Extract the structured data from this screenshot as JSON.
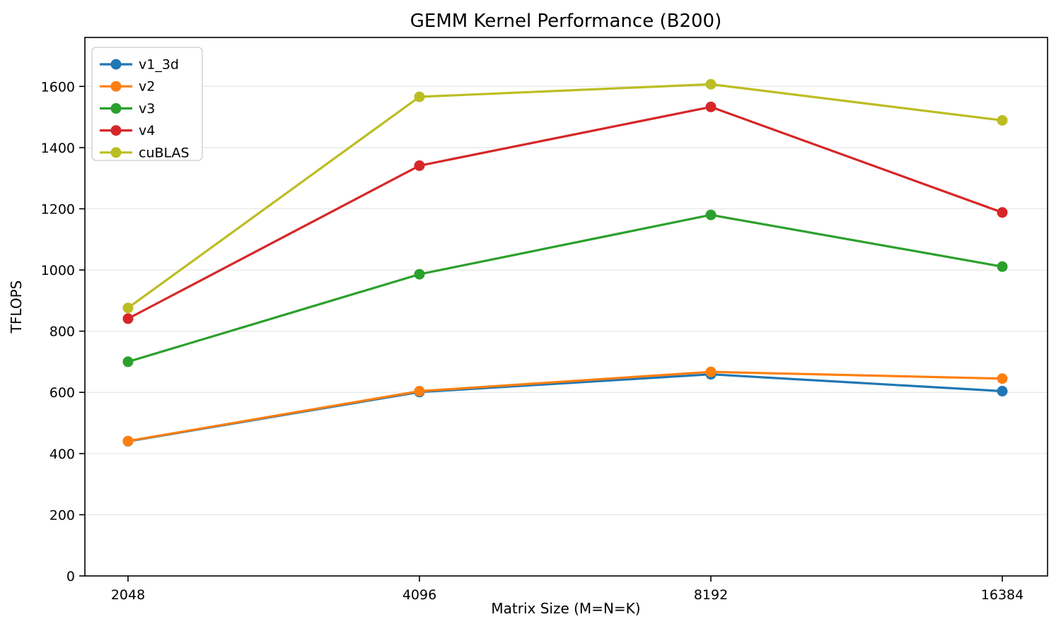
{
  "chart_data": {
    "type": "line",
    "title": "GEMM Kernel Performance (B200)",
    "xlabel": "Matrix Size (M=N=K)",
    "ylabel": "TFLOPS",
    "x_tick_labels": [
      "2048",
      "4096",
      "8192",
      "16384"
    ],
    "y_ticks": [
      0,
      200,
      400,
      600,
      800,
      1000,
      1200,
      1400,
      1600
    ],
    "ylim": [
      0,
      1760
    ],
    "grid": "horizontal-only",
    "legend_position": "upper-left",
    "background_color": "#ffffff",
    "grid_color": "#e6e6e6",
    "spine_color": "#000000",
    "series": [
      {
        "name": "v1_3d",
        "color": "#1f77b4",
        "values": [
          440,
          601,
          659,
          604
        ]
      },
      {
        "name": "v2",
        "color": "#ff7f0e",
        "values": [
          441,
          604,
          667,
          645
        ]
      },
      {
        "name": "v3",
        "color": "#2ca02c",
        "values": [
          700,
          986,
          1180,
          1011
        ]
      },
      {
        "name": "v4",
        "color": "#d62728",
        "values": [
          841,
          1341,
          1533,
          1188
        ]
      },
      {
        "name": "cuBLAS",
        "color": "#bcbd22",
        "values": [
          876,
          1566,
          1607,
          1489
        ]
      }
    ]
  }
}
